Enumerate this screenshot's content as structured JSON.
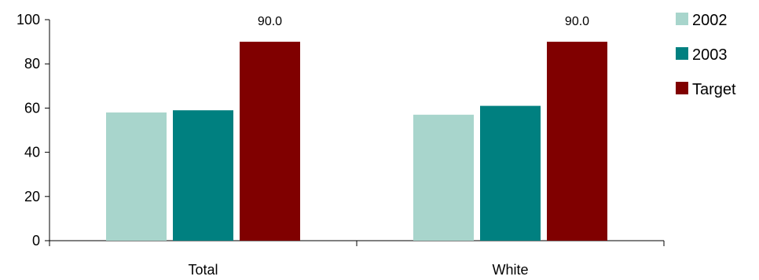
{
  "chart_data": {
    "type": "bar",
    "title": "",
    "xlabel": "",
    "ylabel": "",
    "categories": [
      "Total",
      "White"
    ],
    "series": [
      {
        "name": "2002",
        "values": [
          58,
          57
        ],
        "color": "#a8d5cc"
      },
      {
        "name": "2003",
        "values": [
          59,
          61
        ],
        "color": "#008080"
      },
      {
        "name": "Target",
        "values": [
          90,
          90
        ],
        "color": "#800000"
      }
    ],
    "data_labels": [
      {
        "series": "Target",
        "category": "Total",
        "text": "90.0"
      },
      {
        "series": "Target",
        "category": "White",
        "text": "90.0"
      }
    ],
    "ylim": [
      0,
      100
    ],
    "yticks": [
      0,
      20,
      40,
      60,
      80,
      100
    ],
    "grid": false,
    "legend": "right"
  }
}
